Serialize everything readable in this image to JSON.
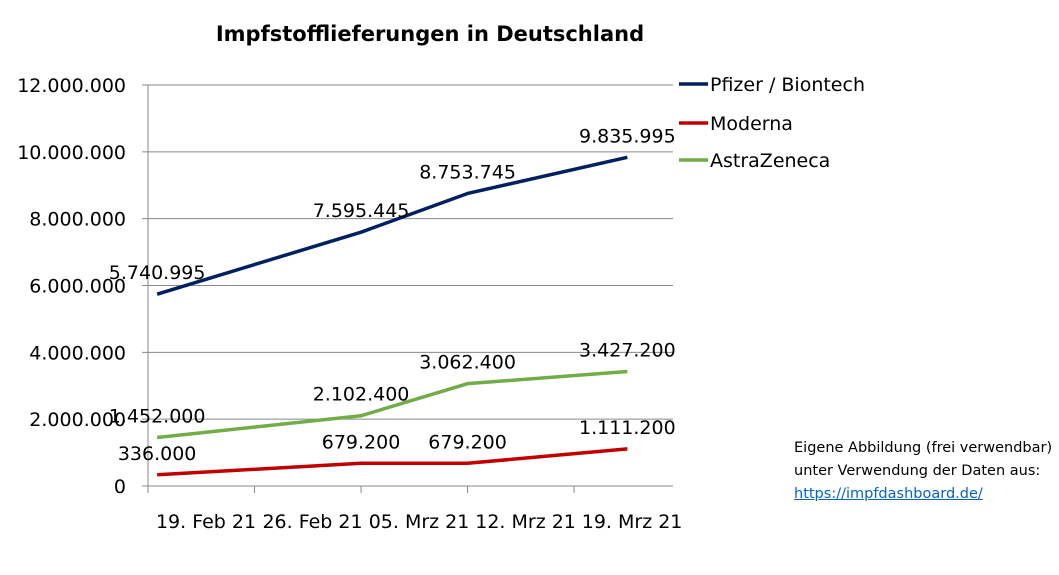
{
  "chart_data": {
    "type": "line",
    "title": "Impfstofflieferungen in Deutschland",
    "xlabel": "",
    "ylabel": "",
    "ylim": [
      0,
      12000000
    ],
    "yticks": [
      "0",
      "2.000.000",
      "4.000.000",
      "6.000.000",
      "8.000.000",
      "10.000.000",
      "12.000.000"
    ],
    "ytick_values": [
      0,
      2000000,
      4000000,
      6000000,
      8000000,
      10000000,
      12000000
    ],
    "xticks": [
      "19. Feb 21",
      "26. Feb 21",
      "05. Mrz 21",
      "12. Mrz 21",
      "19. Mrz 21"
    ],
    "x_day_range": [
      0,
      34.5
    ],
    "x_days": [
      0.6,
      14,
      21,
      31.5
    ],
    "grid": "horizontal",
    "legend": "top-right",
    "series": [
      {
        "name": "Pfizer / Biontech",
        "color": "#002060",
        "values": [
          5740995,
          7595445,
          8753745,
          9835995
        ],
        "labels": [
          "5.740.995",
          "7.595.445",
          "8.753.745",
          "9.835.995"
        ]
      },
      {
        "name": "Moderna",
        "color": "#c00000",
        "values": [
          336000,
          679200,
          679200,
          1111200
        ],
        "labels": [
          "336.000",
          "679.200",
          "679.200",
          "1.111.200"
        ]
      },
      {
        "name": "AstraZeneca",
        "color": "#70ad47",
        "values": [
          1452000,
          2102400,
          3062400,
          3427200
        ],
        "labels": [
          "1.452.000",
          "2.102.400",
          "3.062.400",
          "3.427.200"
        ]
      }
    ]
  },
  "note": {
    "text": "Eigene Abbildung (frei verwendbar) unter Verwendung der Daten aus:",
    "link": "https://impfdashboard.de/"
  }
}
